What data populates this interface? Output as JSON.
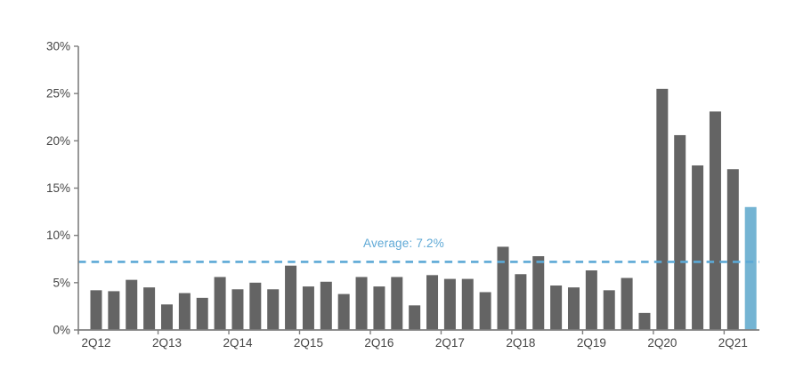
{
  "chart_data": {
    "type": "bar",
    "title": "",
    "unit": "%",
    "values": [
      4.2,
      4.1,
      5.3,
      4.5,
      2.7,
      3.9,
      3.4,
      5.6,
      4.3,
      5.0,
      4.3,
      6.8,
      4.6,
      5.1,
      3.8,
      5.6,
      4.6,
      5.6,
      2.6,
      5.8,
      5.4,
      5.4,
      4.0,
      8.8,
      5.9,
      7.8,
      4.7,
      4.5,
      6.3,
      4.2,
      5.5,
      1.8,
      25.5,
      20.6,
      17.4,
      23.1,
      17.0,
      13.0
    ],
    "highlight_index": 37,
    "x_ticks": [
      {
        "bar_index": 0,
        "label": "2Q12"
      },
      {
        "bar_index": 4,
        "label": "2Q13"
      },
      {
        "bar_index": 8,
        "label": "2Q14"
      },
      {
        "bar_index": 12,
        "label": "2Q15"
      },
      {
        "bar_index": 16,
        "label": "2Q16"
      },
      {
        "bar_index": 20,
        "label": "2Q17"
      },
      {
        "bar_index": 24,
        "label": "2Q18"
      },
      {
        "bar_index": 28,
        "label": "2Q19"
      },
      {
        "bar_index": 32,
        "label": "2Q20"
      },
      {
        "bar_index": 36,
        "label": "2Q21"
      }
    ],
    "y_ticks": [
      {
        "value": 0,
        "label": "0%"
      },
      {
        "value": 5,
        "label": "5%"
      },
      {
        "value": 10,
        "label": "10%"
      },
      {
        "value": 15,
        "label": "15%"
      },
      {
        "value": 20,
        "label": "20%"
      },
      {
        "value": 25,
        "label": "25%"
      },
      {
        "value": 30,
        "label": "30%"
      }
    ],
    "ylim": [
      0,
      30
    ],
    "grid": false,
    "legend": "none",
    "average_line": {
      "value": 7.2,
      "label": "Average: 7.2%",
      "style": "dashed"
    },
    "colors": {
      "bar": "#646464",
      "highlight_bar": "#74B4D3",
      "average_line": "#5CA9D6",
      "average_label": "#5FA9D6",
      "axis": "#7F7F7F",
      "tick_label": "#454545",
      "background": "#FFFFFF"
    }
  }
}
